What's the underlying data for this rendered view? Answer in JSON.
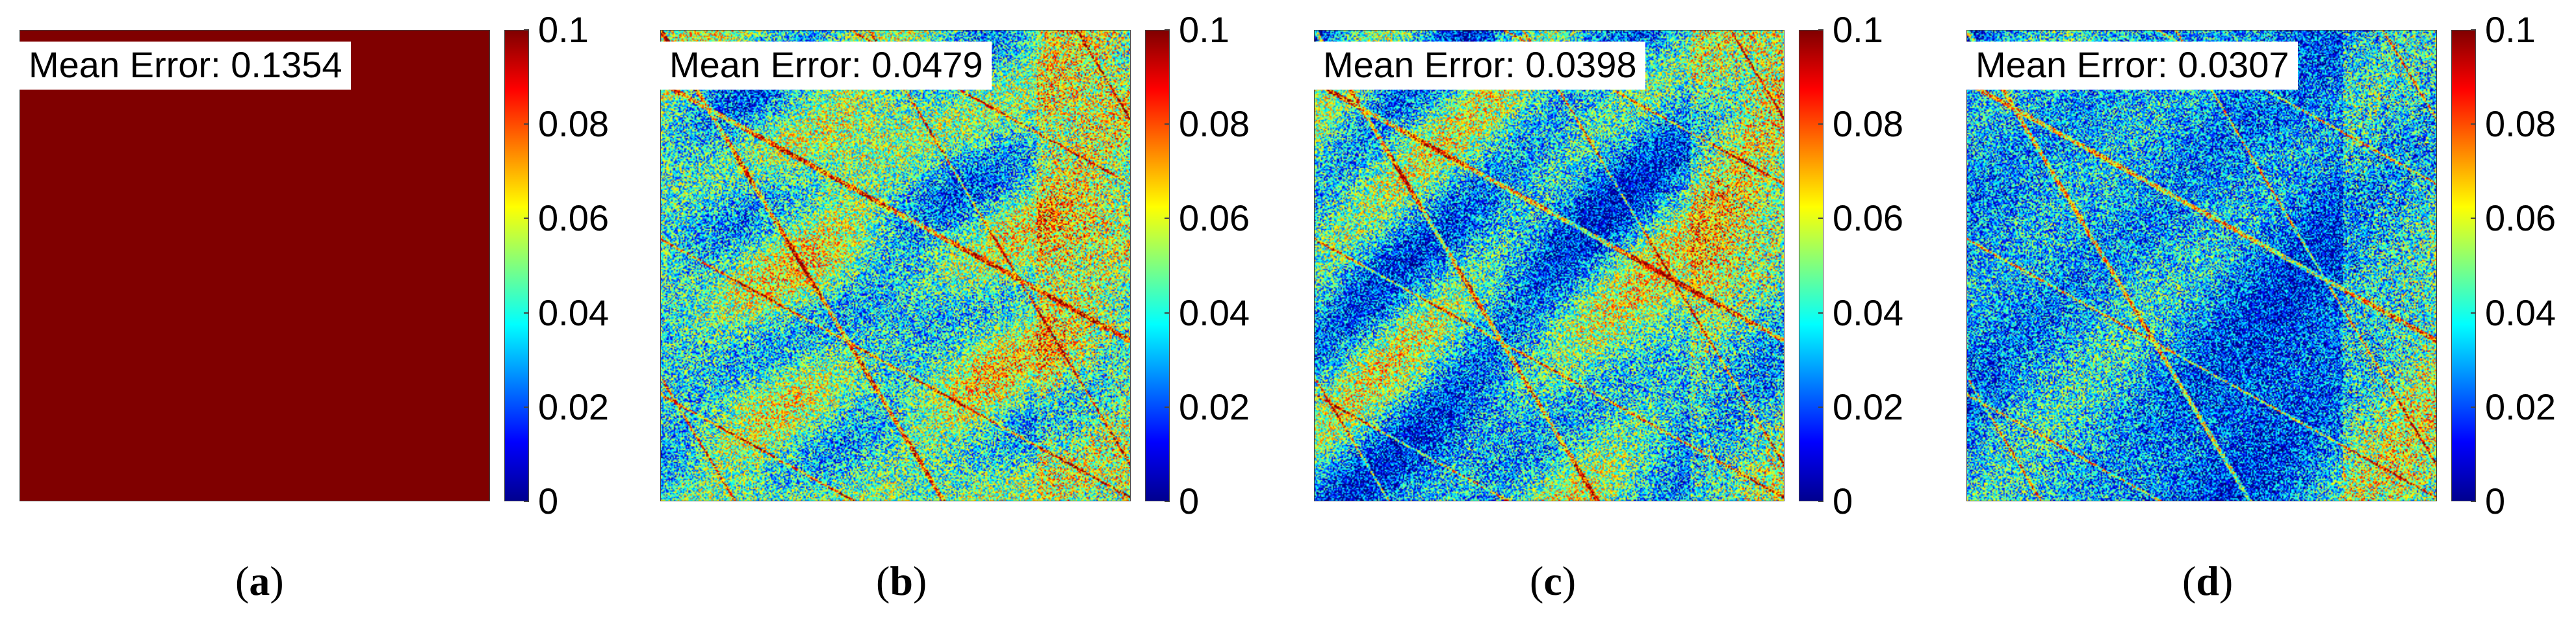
{
  "chart_data": [
    {
      "type": "heatmap",
      "caption_letter": "a",
      "annotation": "Mean Error: 0.1354",
      "mean_error": 0.1354,
      "colorbar": {
        "range": [
          0,
          0.1
        ],
        "ticks": [
          "0",
          "0.02",
          "0.04",
          "0.06",
          "0.08",
          "0.1"
        ],
        "colormap": "jet"
      }
    },
    {
      "type": "heatmap",
      "caption_letter": "b",
      "annotation": "Mean Error: 0.0479",
      "mean_error": 0.0479,
      "colorbar": {
        "range": [
          0,
          0.1
        ],
        "ticks": [
          "0",
          "0.02",
          "0.04",
          "0.06",
          "0.08",
          "0.1"
        ],
        "colormap": "jet"
      }
    },
    {
      "type": "heatmap",
      "caption_letter": "c",
      "annotation": "Mean Error: 0.0398",
      "mean_error": 0.0398,
      "colorbar": {
        "range": [
          0,
          0.1
        ],
        "ticks": [
          "0",
          "0.02",
          "0.04",
          "0.06",
          "0.08",
          "0.1"
        ],
        "colormap": "jet"
      }
    },
    {
      "type": "heatmap",
      "caption_letter": "d",
      "annotation": "Mean Error: 0.0307",
      "mean_error": 0.0307,
      "colorbar": {
        "range": [
          0,
          0.1
        ],
        "ticks": [
          "0",
          "0.02",
          "0.04",
          "0.06",
          "0.08",
          "0.1"
        ],
        "colormap": "jet"
      }
    }
  ]
}
